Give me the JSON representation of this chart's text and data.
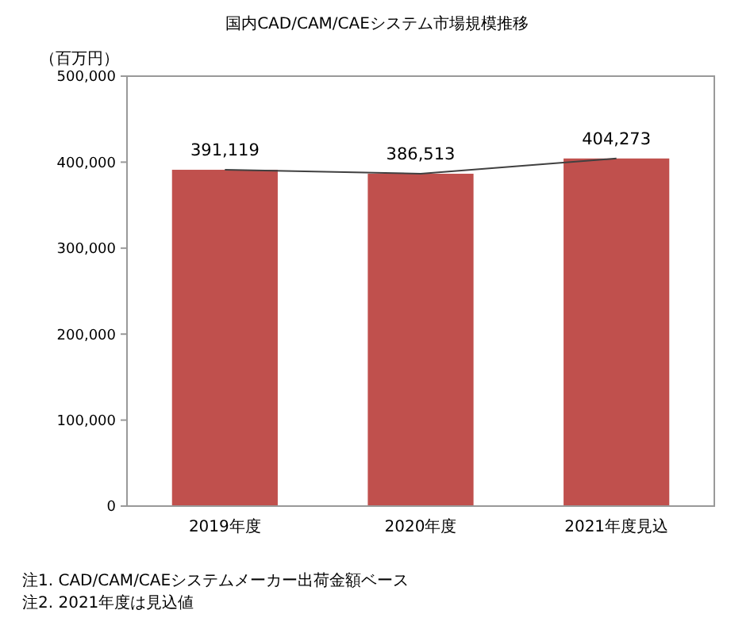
{
  "chart_data": {
    "type": "bar",
    "title": "国内CAD/CAM/CAEシステム市場規模推移",
    "ylabel": "（百万円）",
    "categories": [
      "2019年度",
      "2020年度",
      "2021年度見込"
    ],
    "series": [
      {
        "color": "#c0504d",
        "values": [
          391119,
          386513,
          404273
        ],
        "value_labels": [
          "391,119",
          "386,513",
          "404,273"
        ]
      },
      {
        "type": "line",
        "color": "#404040",
        "values": [
          391119,
          386513,
          404273
        ],
        "marker": "none",
        "line_style": "solid"
      }
    ],
    "ylim": [
      0,
      500000
    ],
    "yticks": [
      {
        "value": 0,
        "label": "0"
      },
      {
        "value": 100000,
        "label": "100,000"
      },
      {
        "value": 200000,
        "label": "200,000"
      },
      {
        "value": 300000,
        "label": "300,000"
      },
      {
        "value": 400000,
        "label": "400,000"
      },
      {
        "value": 500000,
        "label": "500,000"
      }
    ],
    "grid": false,
    "annotations": [
      "注1. CAD/CAM/CAEシステムメーカー出荷金額ベース",
      "注2. 2021年度は見込値"
    ]
  }
}
